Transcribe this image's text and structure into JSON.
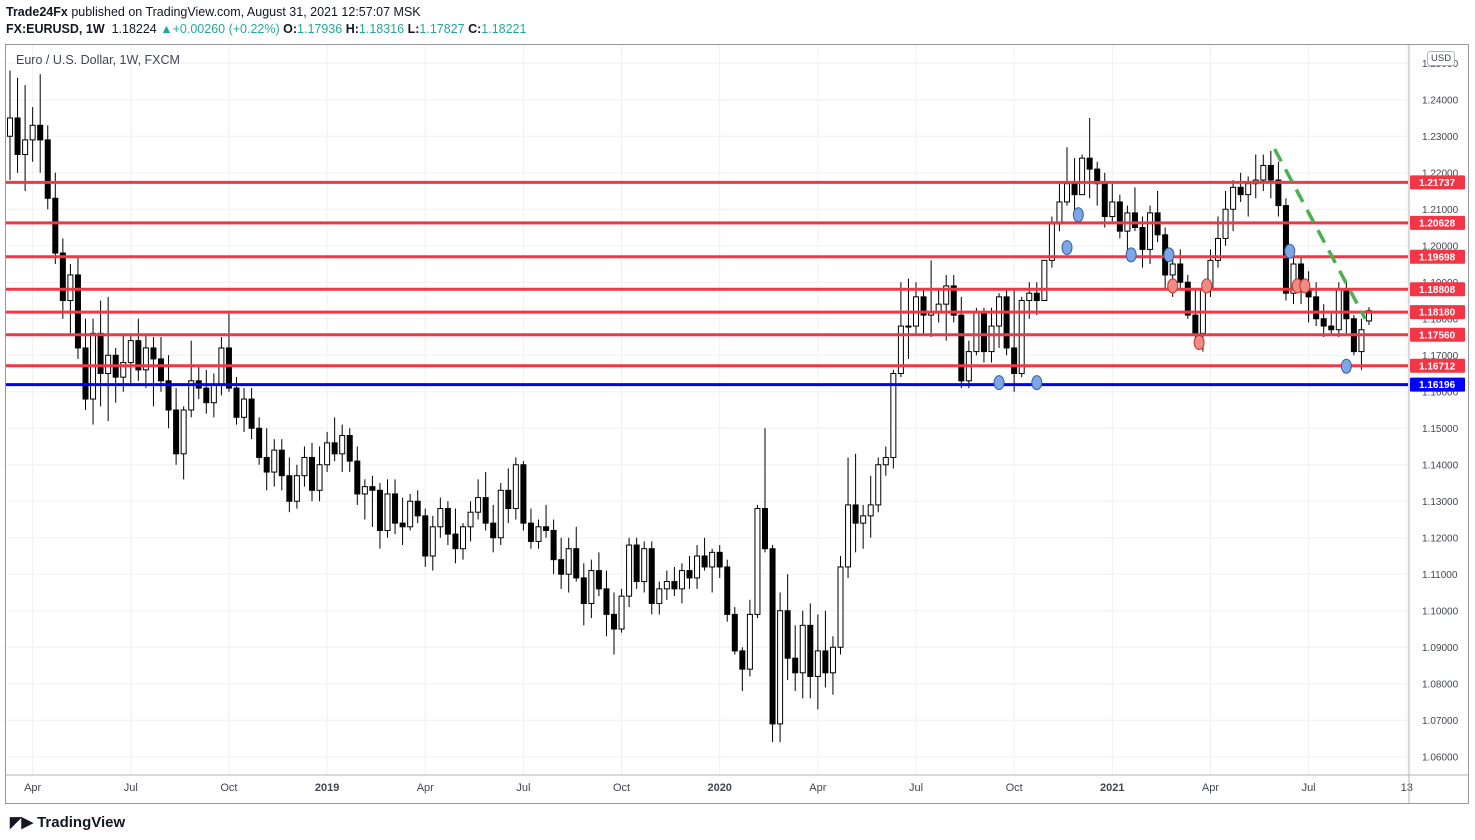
{
  "header": {
    "publisher": "Trade24Fx",
    "published_text": "published on TradingView.com, August 31, 2021 12:57:07 MSK",
    "symbol": "FX:EURUSD, 1W",
    "last": "1.18224",
    "change_icon": "triangle-up-icon",
    "change_symbol": "▲",
    "change": "+0.00260 (+0.22%)",
    "o_label": "O:",
    "o": "1.17936",
    "h_label": "H:",
    "h": "1.18316",
    "l_label": "L:",
    "l": "1.17827",
    "c_label": "C:",
    "c": "1.18221"
  },
  "chart_title": "Euro / U.S. Dollar, 1W, FXCM",
  "currency_badge": "USD",
  "branding": "TradingView",
  "colors": {
    "up_color": "#26a69a",
    "resistance_line": "#f23645",
    "support_line": "#0000ff",
    "trend_line": "#4caf50",
    "candle_body": "#000000"
  },
  "chart_data": {
    "type": "candlestick",
    "title": "Euro / U.S. Dollar, 1W, FXCM",
    "ylabel": "USD",
    "ylim": [
      1.055,
      1.255
    ],
    "ytick_labels": [
      "1.25000",
      "1.24000",
      "1.23000",
      "1.22000",
      "1.21000",
      "1.20000",
      "1.19000",
      "1.18000",
      "1.17000",
      "1.16000",
      "1.15000",
      "1.14000",
      "1.13000",
      "1.12000",
      "1.11000",
      "1.10000",
      "1.09000",
      "1.08000",
      "1.07000",
      "1.06000"
    ],
    "yticks": [
      1.25,
      1.24,
      1.23,
      1.22,
      1.21,
      1.2,
      1.19,
      1.18,
      1.17,
      1.16,
      1.15,
      1.14,
      1.13,
      1.12,
      1.11,
      1.1,
      1.09,
      1.08,
      1.07,
      1.06
    ],
    "xtick_labels": [
      "Apr",
      "Jul",
      "Oct",
      "2019",
      "Apr",
      "Jul",
      "Oct",
      "2020",
      "Apr",
      "Jul",
      "Oct",
      "2021",
      "Apr",
      "Jul",
      "13"
    ],
    "xticks": [
      3,
      16,
      29,
      42,
      55,
      68,
      81,
      94,
      107,
      120,
      133,
      146,
      159,
      172,
      185
    ],
    "last_price_label": "1.18221",
    "last_price": 1.18221,
    "horizontal_levels": [
      {
        "label": "1.21737",
        "value": 1.21737,
        "kind": "resistance"
      },
      {
        "label": "1.20628",
        "value": 1.20628,
        "kind": "resistance"
      },
      {
        "label": "1.19698",
        "value": 1.19698,
        "kind": "resistance"
      },
      {
        "label": "1.18808",
        "value": 1.18808,
        "kind": "resistance"
      },
      {
        "label": "1.18180",
        "value": 1.1818,
        "kind": "resistance"
      },
      {
        "label": "1.17560",
        "value": 1.1756,
        "kind": "resistance"
      },
      {
        "label": "1.16712",
        "value": 1.16712,
        "kind": "resistance"
      },
      {
        "label": "1.16196",
        "value": 1.16196,
        "kind": "support"
      }
    ],
    "trendline": {
      "style": "dashed",
      "from": {
        "week": 167.5,
        "price": 1.2265
      },
      "to": {
        "week": 179.5,
        "price": 1.18
      }
    },
    "markers": [
      {
        "week": 131,
        "price": 1.1625,
        "color": "blue"
      },
      {
        "week": 136,
        "price": 1.1625,
        "color": "blue"
      },
      {
        "week": 140,
        "price": 1.1995,
        "color": "blue"
      },
      {
        "week": 141.5,
        "price": 1.2085,
        "color": "blue"
      },
      {
        "week": 148.5,
        "price": 1.1975,
        "color": "blue"
      },
      {
        "week": 153.5,
        "price": 1.1975,
        "color": "blue"
      },
      {
        "week": 154,
        "price": 1.189,
        "color": "red"
      },
      {
        "week": 157.5,
        "price": 1.1735,
        "color": "red"
      },
      {
        "week": 158.5,
        "price": 1.189,
        "color": "red"
      },
      {
        "week": 169.5,
        "price": 1.1985,
        "color": "blue"
      },
      {
        "week": 170.5,
        "price": 1.189,
        "color": "red"
      },
      {
        "week": 171.5,
        "price": 1.189,
        "color": "red"
      },
      {
        "week": 177,
        "price": 1.167,
        "color": "blue"
      }
    ],
    "x_unit": "weeks since the first candle",
    "candles": [
      [
        1.23,
        1.248,
        1.218,
        1.235
      ],
      [
        1.235,
        1.246,
        1.22,
        1.225
      ],
      [
        1.225,
        1.244,
        1.215,
        1.229
      ],
      [
        1.229,
        1.238,
        1.223,
        1.233
      ],
      [
        1.233,
        1.247,
        1.22,
        1.229
      ],
      [
        1.229,
        1.233,
        1.21,
        1.213
      ],
      [
        1.213,
        1.22,
        1.195,
        1.198
      ],
      [
        1.198,
        1.202,
        1.18,
        1.185
      ],
      [
        1.185,
        1.195,
        1.176,
        1.192
      ],
      [
        1.192,
        1.197,
        1.169,
        1.172
      ],
      [
        1.172,
        1.18,
        1.155,
        1.158
      ],
      [
        1.158,
        1.18,
        1.151,
        1.176
      ],
      [
        1.176,
        1.185,
        1.156,
        1.165
      ],
      [
        1.165,
        1.186,
        1.152,
        1.17
      ],
      [
        1.17,
        1.172,
        1.157,
        1.164
      ],
      [
        1.164,
        1.176,
        1.16,
        1.168
      ],
      [
        1.168,
        1.176,
        1.162,
        1.174
      ],
      [
        1.174,
        1.18,
        1.163,
        1.166
      ],
      [
        1.166,
        1.176,
        1.161,
        1.172
      ],
      [
        1.172,
        1.175,
        1.156,
        1.169
      ],
      [
        1.169,
        1.175,
        1.16,
        1.163
      ],
      [
        1.163,
        1.17,
        1.15,
        1.155
      ],
      [
        1.155,
        1.161,
        1.14,
        1.143
      ],
      [
        1.143,
        1.156,
        1.136,
        1.155
      ],
      [
        1.155,
        1.174,
        1.153,
        1.163
      ],
      [
        1.163,
        1.167,
        1.158,
        1.161
      ],
      [
        1.161,
        1.166,
        1.154,
        1.157
      ],
      [
        1.157,
        1.165,
        1.153,
        1.162
      ],
      [
        1.162,
        1.175,
        1.159,
        1.172
      ],
      [
        1.172,
        1.182,
        1.16,
        1.161
      ],
      [
        1.161,
        1.164,
        1.151,
        1.153
      ],
      [
        1.153,
        1.161,
        1.149,
        1.158
      ],
      [
        1.158,
        1.161,
        1.147,
        1.15
      ],
      [
        1.15,
        1.153,
        1.14,
        1.142
      ],
      [
        1.142,
        1.15,
        1.133,
        1.138
      ],
      [
        1.138,
        1.147,
        1.134,
        1.144
      ],
      [
        1.144,
        1.147,
        1.133,
        1.137
      ],
      [
        1.137,
        1.142,
        1.127,
        1.13
      ],
      [
        1.13,
        1.14,
        1.128,
        1.137
      ],
      [
        1.137,
        1.145,
        1.134,
        1.142
      ],
      [
        1.142,
        1.146,
        1.13,
        1.133
      ],
      [
        1.133,
        1.145,
        1.13,
        1.14
      ],
      [
        1.14,
        1.149,
        1.138,
        1.146
      ],
      [
        1.146,
        1.153,
        1.141,
        1.143
      ],
      [
        1.143,
        1.151,
        1.138,
        1.148
      ],
      [
        1.148,
        1.15,
        1.138,
        1.141
      ],
      [
        1.141,
        1.145,
        1.129,
        1.132
      ],
      [
        1.132,
        1.136,
        1.125,
        1.134
      ],
      [
        1.134,
        1.137,
        1.123,
        1.133
      ],
      [
        1.133,
        1.135,
        1.117,
        1.122
      ],
      [
        1.122,
        1.136,
        1.12,
        1.132
      ],
      [
        1.132,
        1.136,
        1.121,
        1.124
      ],
      [
        1.124,
        1.131,
        1.118,
        1.123
      ],
      [
        1.123,
        1.132,
        1.122,
        1.13
      ],
      [
        1.13,
        1.133,
        1.124,
        1.126
      ],
      [
        1.126,
        1.128,
        1.112,
        1.115
      ],
      [
        1.115,
        1.126,
        1.111,
        1.123
      ],
      [
        1.123,
        1.131,
        1.12,
        1.128
      ],
      [
        1.128,
        1.13,
        1.118,
        1.121
      ],
      [
        1.121,
        1.128,
        1.113,
        1.117
      ],
      [
        1.117,
        1.124,
        1.114,
        1.123
      ],
      [
        1.123,
        1.13,
        1.119,
        1.127
      ],
      [
        1.127,
        1.136,
        1.125,
        1.131
      ],
      [
        1.131,
        1.138,
        1.122,
        1.124
      ],
      [
        1.124,
        1.129,
        1.116,
        1.12
      ],
      [
        1.12,
        1.135,
        1.118,
        1.133
      ],
      [
        1.133,
        1.139,
        1.124,
        1.128
      ],
      [
        1.128,
        1.142,
        1.125,
        1.14
      ],
      [
        1.14,
        1.141,
        1.122,
        1.124
      ],
      [
        1.124,
        1.128,
        1.117,
        1.119
      ],
      [
        1.119,
        1.125,
        1.117,
        1.123
      ],
      [
        1.123,
        1.129,
        1.12,
        1.122
      ],
      [
        1.122,
        1.125,
        1.11,
        1.114
      ],
      [
        1.114,
        1.12,
        1.106,
        1.11
      ],
      [
        1.11,
        1.12,
        1.105,
        1.117
      ],
      [
        1.117,
        1.123,
        1.108,
        1.109
      ],
      [
        1.109,
        1.113,
        1.096,
        1.102
      ],
      [
        1.102,
        1.114,
        1.098,
        1.111
      ],
      [
        1.111,
        1.116,
        1.104,
        1.106
      ],
      [
        1.106,
        1.111,
        1.093,
        1.099
      ],
      [
        1.099,
        1.105,
        1.088,
        1.095
      ],
      [
        1.095,
        1.106,
        1.094,
        1.104
      ],
      [
        1.104,
        1.12,
        1.101,
        1.118
      ],
      [
        1.118,
        1.12,
        1.106,
        1.108
      ],
      [
        1.108,
        1.119,
        1.105,
        1.117
      ],
      [
        1.117,
        1.119,
        1.099,
        1.102
      ],
      [
        1.102,
        1.108,
        1.099,
        1.106
      ],
      [
        1.106,
        1.111,
        1.103,
        1.108
      ],
      [
        1.108,
        1.112,
        1.104,
        1.106
      ],
      [
        1.106,
        1.113,
        1.102,
        1.111
      ],
      [
        1.111,
        1.115,
        1.106,
        1.109
      ],
      [
        1.109,
        1.118,
        1.106,
        1.115
      ],
      [
        1.115,
        1.12,
        1.111,
        1.112
      ],
      [
        1.112,
        1.117,
        1.105,
        1.116
      ],
      [
        1.116,
        1.118,
        1.109,
        1.112
      ],
      [
        1.112,
        1.114,
        1.097,
        1.099
      ],
      [
        1.099,
        1.101,
        1.088,
        1.089
      ],
      [
        1.089,
        1.09,
        1.078,
        1.084
      ],
      [
        1.084,
        1.103,
        1.082,
        1.099
      ],
      [
        1.099,
        1.129,
        1.098,
        1.128
      ],
      [
        1.128,
        1.15,
        1.116,
        1.117
      ],
      [
        1.117,
        1.118,
        1.064,
        1.069
      ],
      [
        1.069,
        1.105,
        1.064,
        1.1
      ],
      [
        1.1,
        1.11,
        1.081,
        1.087
      ],
      [
        1.087,
        1.096,
        1.078,
        1.083
      ],
      [
        1.083,
        1.1,
        1.076,
        1.096
      ],
      [
        1.096,
        1.102,
        1.076,
        1.082
      ],
      [
        1.082,
        1.099,
        1.073,
        1.089
      ],
      [
        1.089,
        1.1,
        1.079,
        1.083
      ],
      [
        1.083,
        1.093,
        1.077,
        1.09
      ],
      [
        1.09,
        1.115,
        1.088,
        1.112
      ],
      [
        1.112,
        1.142,
        1.109,
        1.129
      ],
      [
        1.129,
        1.143,
        1.116,
        1.124
      ],
      [
        1.124,
        1.129,
        1.117,
        1.126
      ],
      [
        1.126,
        1.137,
        1.12,
        1.129
      ],
      [
        1.129,
        1.142,
        1.127,
        1.14
      ],
      [
        1.14,
        1.145,
        1.137,
        1.142
      ],
      [
        1.142,
        1.166,
        1.139,
        1.165
      ],
      [
        1.165,
        1.19,
        1.164,
        1.178
      ],
      [
        1.178,
        1.191,
        1.169,
        1.178
      ],
      [
        1.178,
        1.19,
        1.176,
        1.186
      ],
      [
        1.186,
        1.188,
        1.176,
        1.181
      ],
      [
        1.181,
        1.196,
        1.175,
        1.182
      ],
      [
        1.182,
        1.188,
        1.179,
        1.184
      ],
      [
        1.184,
        1.192,
        1.174,
        1.189
      ],
      [
        1.189,
        1.192,
        1.179,
        1.181
      ],
      [
        1.181,
        1.186,
        1.161,
        1.163
      ],
      [
        1.163,
        1.174,
        1.161,
        1.171
      ],
      [
        1.171,
        1.183,
        1.17,
        1.182
      ],
      [
        1.182,
        1.183,
        1.168,
        1.171
      ],
      [
        1.171,
        1.183,
        1.168,
        1.178
      ],
      [
        1.178,
        1.187,
        1.172,
        1.186
      ],
      [
        1.186,
        1.188,
        1.17,
        1.172
      ],
      [
        1.172,
        1.188,
        1.16,
        1.165
      ],
      [
        1.165,
        1.186,
        1.164,
        1.185
      ],
      [
        1.185,
        1.19,
        1.18,
        1.187
      ],
      [
        1.187,
        1.19,
        1.181,
        1.185
      ],
      [
        1.185,
        1.196,
        1.185,
        1.196
      ],
      [
        1.196,
        1.208,
        1.194,
        1.206
      ],
      [
        1.206,
        1.217,
        1.204,
        1.212
      ],
      [
        1.212,
        1.227,
        1.211,
        1.217
      ],
      [
        1.217,
        1.224,
        1.209,
        1.214
      ],
      [
        1.214,
        1.225,
        1.214,
        1.224
      ],
      [
        1.224,
        1.235,
        1.213,
        1.221
      ],
      [
        1.221,
        1.223,
        1.211,
        1.217
      ],
      [
        1.217,
        1.22,
        1.205,
        1.208
      ],
      [
        1.208,
        1.217,
        1.206,
        1.212
      ],
      [
        1.212,
        1.214,
        1.202,
        1.204
      ],
      [
        1.204,
        1.211,
        1.196,
        1.209
      ],
      [
        1.209,
        1.216,
        1.204,
        1.205
      ],
      [
        1.205,
        1.208,
        1.194,
        1.199
      ],
      [
        1.199,
        1.211,
        1.195,
        1.209
      ],
      [
        1.209,
        1.215,
        1.201,
        1.203
      ],
      [
        1.203,
        1.205,
        1.188,
        1.192
      ],
      [
        1.192,
        1.199,
        1.186,
        1.195
      ],
      [
        1.195,
        1.199,
        1.188,
        1.19
      ],
      [
        1.19,
        1.192,
        1.18,
        1.181
      ],
      [
        1.181,
        1.188,
        1.174,
        1.176
      ],
      [
        1.176,
        1.189,
        1.171,
        1.188
      ],
      [
        1.188,
        1.199,
        1.186,
        1.196
      ],
      [
        1.196,
        1.208,
        1.194,
        1.202
      ],
      [
        1.202,
        1.215,
        1.2,
        1.21
      ],
      [
        1.21,
        1.218,
        1.204,
        1.216
      ],
      [
        1.216,
        1.22,
        1.212,
        1.214
      ],
      [
        1.214,
        1.219,
        1.208,
        1.217
      ],
      [
        1.217,
        1.225,
        1.213,
        1.218
      ],
      [
        1.218,
        1.225,
        1.215,
        1.222
      ],
      [
        1.222,
        1.226,
        1.213,
        1.218
      ],
      [
        1.218,
        1.223,
        1.208,
        1.211
      ],
      [
        1.211,
        1.213,
        1.185,
        1.187
      ],
      [
        1.187,
        1.198,
        1.184,
        1.195
      ],
      [
        1.195,
        1.197,
        1.184,
        1.188
      ],
      [
        1.188,
        1.193,
        1.179,
        1.186
      ],
      [
        1.186,
        1.19,
        1.178,
        1.18
      ],
      [
        1.18,
        1.184,
        1.175,
        1.178
      ],
      [
        1.178,
        1.182,
        1.176,
        1.177
      ],
      [
        1.177,
        1.19,
        1.175,
        1.188
      ],
      [
        1.188,
        1.19,
        1.176,
        1.18
      ],
      [
        1.18,
        1.181,
        1.17,
        1.171
      ],
      [
        1.171,
        1.18,
        1.166,
        1.177
      ],
      [
        1.1794,
        1.1832,
        1.1783,
        1.1822
      ]
    ]
  }
}
